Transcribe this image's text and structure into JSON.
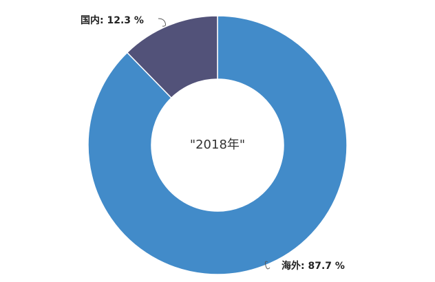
{
  "chart_data": {
    "type": "pie",
    "donut": true,
    "center_label": "\"2018年\"",
    "slices": [
      {
        "name": "海外",
        "value": 87.7,
        "label": "海外: 87.7 %",
        "color": "#428bc9"
      },
      {
        "name": "国内",
        "value": 12.3,
        "label": "国内: 12.3 %",
        "color": "#525279"
      }
    ],
    "start_angle_deg": 0,
    "direction": "clockwise",
    "legend": "none",
    "slice_border_color": "#ffffff"
  }
}
